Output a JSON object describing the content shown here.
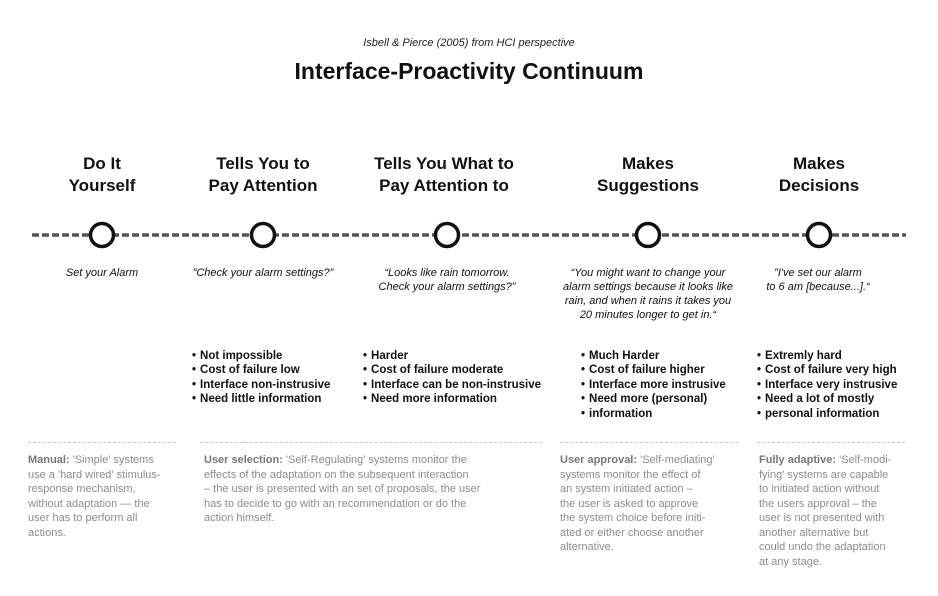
{
  "subtitle": "Isbell & Pierce (2005) from HCI perspective",
  "title": "Interface-Proactivity Continuum",
  "stages": [
    {
      "title_lines": [
        "Do It",
        "Yourself"
      ],
      "example_lines": [
        "Set your Alarm"
      ],
      "bullets": [],
      "desc_lead": "Manual:",
      "desc_lines": [
        " 'Simple' systems",
        "use a 'hard wired' stimulus-",
        "response mechanism,",
        "without adaptation — the",
        "user has to perform all",
        "actions."
      ]
    },
    {
      "title_lines": [
        "Tells You to",
        "Pay Attention"
      ],
      "example_lines": [
        "”Check your alarm settings?”"
      ],
      "bullets": [
        "Not impossible",
        "Cost of failure low",
        "Interface non-instrusive",
        "Need little information"
      ],
      "desc_lead": "User selection:",
      "desc_lines": [
        " 'Self-Regulating' systems monitor the",
        "effects of the adaptation on the subsequent interaction",
        "– the user is presented with an set of proposals, the user",
        "has to decide to go with an recommendation or do the",
        "action himself."
      ]
    },
    {
      "title_lines": [
        "Tells You What to",
        "Pay Attention to"
      ],
      "example_lines": [
        "“Looks like rain tomorrow.",
        "Check your alarm settings?”"
      ],
      "bullets": [
        "Harder",
        "Cost of failure moderate",
        "Interface can be non-instrusive",
        "Need more information"
      ],
      "desc_lead": "",
      "desc_lines": []
    },
    {
      "title_lines": [
        "Makes",
        "Suggestions"
      ],
      "example_lines": [
        "“You might want to change your",
        "alarm settings because it looks like",
        "rain, and when it rains it takes you",
        "20 minutes longer to get in.“"
      ],
      "bullets": [
        "Much Harder",
        "Cost of failure higher",
        "Interface more instrusive",
        "Need more (personal)",
        "information"
      ],
      "desc_lead": "User approval:",
      "desc_lines": [
        " 'Self-mediating'",
        "systems monitor the effect of",
        "an system initiated action –",
        "the user is asked to approve",
        "the system choice before initi-",
        "ated or either choose another",
        "alternative."
      ]
    },
    {
      "title_lines": [
        "Makes",
        "Decisions"
      ],
      "example_lines": [
        "”I've set our alarm",
        "to 6 am [because...].“"
      ],
      "bullets": [
        "Extremly hard",
        "Cost of failure very high",
        "Interface very instrusive",
        "Need a lot of mostly",
        "personal information"
      ],
      "desc_lead": "Fully adaptive:",
      "desc_lines": [
        " 'Self-modi-",
        "fying' systems are capable",
        "to initiated action without",
        "the users approval – the",
        "user is not presented with",
        "another alternative but",
        "could undo the adaptation",
        "at any stage."
      ]
    }
  ],
  "colors": {
    "text": "#111111",
    "axis": "#555555",
    "description": "#8c8c8c",
    "separator": "#c8c8c8"
  }
}
